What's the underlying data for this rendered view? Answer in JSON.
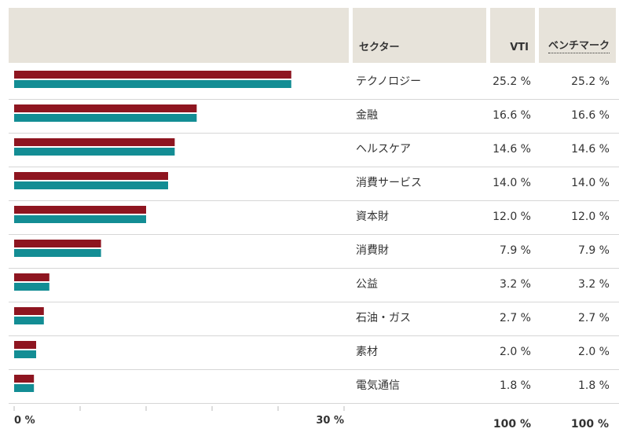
{
  "header": {
    "sector": "セクター",
    "vti": "VTI",
    "benchmark": "ベンチマーク"
  },
  "colors": {
    "vti": "#8e1520",
    "benchmark": "#138d94",
    "header_bg": "#e7e3da"
  },
  "chart_data": {
    "type": "bar",
    "orientation": "horizontal",
    "categories": [
      "テクノロジー",
      "金融",
      "ヘルスケア",
      "消費サービス",
      "資本財",
      "消費財",
      "公益",
      "石油・ガス",
      "素材",
      "電気通信"
    ],
    "series": [
      {
        "name": "VTI",
        "values": [
          25.2,
          16.6,
          14.6,
          14.0,
          12.0,
          7.9,
          3.2,
          2.7,
          2.0,
          1.8
        ]
      },
      {
        "name": "ベンチマーク",
        "values": [
          25.2,
          16.6,
          14.6,
          14.0,
          12.0,
          7.9,
          3.2,
          2.7,
          2.0,
          1.8
        ]
      }
    ],
    "xlim": [
      0,
      30
    ],
    "x_tick_labels": [
      "0 %",
      "30 %"
    ],
    "grid": false
  },
  "rows": [
    {
      "sector": "テクノロジー",
      "vti": "25.2 %",
      "bench": "25.2 %"
    },
    {
      "sector": "金融",
      "vti": "16.6 %",
      "bench": "16.6 %"
    },
    {
      "sector": "ヘルスケア",
      "vti": "14.6 %",
      "bench": "14.6 %"
    },
    {
      "sector": "消費サービス",
      "vti": "14.0 %",
      "bench": "14.0 %"
    },
    {
      "sector": "資本財",
      "vti": "12.0 %",
      "bench": "12.0 %"
    },
    {
      "sector": "消費財",
      "vti": "7.9 %",
      "bench": "7.9 %"
    },
    {
      "sector": "公益",
      "vti": "3.2 %",
      "bench": "3.2 %"
    },
    {
      "sector": "石油・ガス",
      "vti": "2.7 %",
      "bench": "2.7 %"
    },
    {
      "sector": "素材",
      "vti": "2.0 %",
      "bench": "2.0 %"
    },
    {
      "sector": "電気通信",
      "vti": "1.8 %",
      "bench": "1.8 %"
    }
  ],
  "totals": {
    "vti": "100 %",
    "bench": "100 %"
  }
}
